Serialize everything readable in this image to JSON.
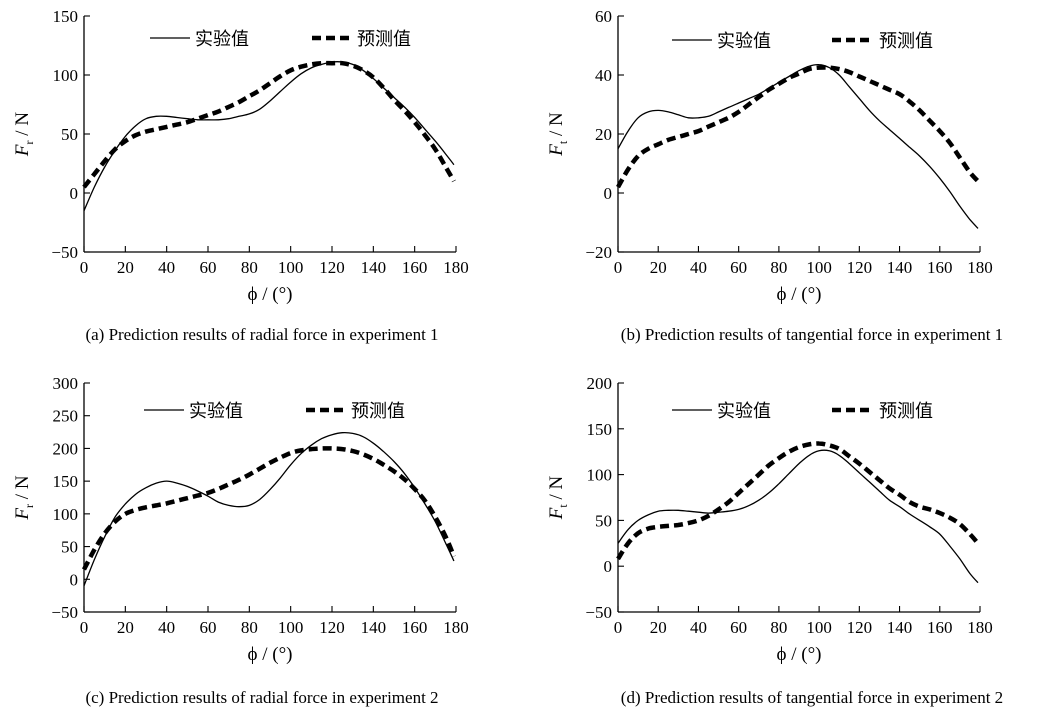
{
  "chart_data": [
    {
      "type": "line",
      "caption": "(a) Prediction results of radial force in experiment 1",
      "xlabel": "ϕ / (°)",
      "ylabel_main": "F",
      "ylabel_sub": "r",
      "ylabel_unit": " / N",
      "xlim": [
        0,
        180
      ],
      "ylim": [
        -50,
        150
      ],
      "xticks": [
        0,
        20,
        40,
        60,
        80,
        100,
        120,
        140,
        160,
        180
      ],
      "yticks": [
        -50,
        0,
        50,
        100,
        150
      ],
      "legend": "top",
      "series": [
        {
          "name": "实验值",
          "style": "solid",
          "x": [
            0,
            5,
            10,
            15,
            20,
            25,
            30,
            35,
            40,
            45,
            50,
            55,
            60,
            65,
            70,
            75,
            80,
            85,
            90,
            95,
            100,
            105,
            110,
            115,
            120,
            125,
            130,
            135,
            140,
            145,
            150,
            155,
            160,
            165,
            170,
            175,
            179
          ],
          "y": [
            -15,
            5,
            22,
            36,
            48,
            57,
            63,
            65,
            65,
            64,
            63,
            62,
            62,
            62,
            63,
            65,
            67,
            71,
            78,
            86,
            94,
            101,
            106,
            109,
            111,
            111,
            109,
            104,
            97,
            89,
            81,
            73,
            64,
            54,
            44,
            33,
            24
          ]
        },
        {
          "name": "预测值",
          "style": "dashed",
          "x": [
            0,
            5,
            10,
            15,
            20,
            25,
            30,
            35,
            40,
            45,
            50,
            55,
            60,
            65,
            70,
            75,
            80,
            85,
            90,
            95,
            100,
            105,
            110,
            115,
            120,
            125,
            130,
            135,
            140,
            145,
            150,
            155,
            160,
            165,
            170,
            175,
            179
          ],
          "y": [
            5,
            16,
            27,
            37,
            44,
            49,
            52,
            54,
            56,
            58,
            60,
            63,
            66,
            69,
            73,
            77,
            82,
            87,
            93,
            99,
            104,
            107,
            109,
            110,
            110,
            110,
            108,
            104,
            98,
            89,
            79,
            70,
            60,
            49,
            37,
            22,
            10
          ]
        }
      ]
    },
    {
      "type": "line",
      "caption": "(b) Prediction results of tangential force in experiment 1",
      "xlabel": "ϕ / (°)",
      "ylabel_main": "F",
      "ylabel_sub": "t",
      "ylabel_unit": " / N",
      "xlim": [
        0,
        180
      ],
      "ylim": [
        -20,
        60
      ],
      "xticks": [
        0,
        20,
        40,
        60,
        80,
        100,
        120,
        140,
        160,
        180
      ],
      "yticks": [
        -20,
        0,
        20,
        40,
        60
      ],
      "legend": "top",
      "series": [
        {
          "name": "实验值",
          "style": "solid",
          "x": [
            0,
            5,
            10,
            15,
            20,
            25,
            30,
            35,
            40,
            45,
            50,
            55,
            60,
            65,
            70,
            75,
            80,
            85,
            90,
            95,
            100,
            105,
            110,
            115,
            120,
            125,
            130,
            135,
            140,
            145,
            150,
            155,
            160,
            165,
            170,
            175,
            179
          ],
          "y": [
            15,
            21,
            25.5,
            27.5,
            28,
            27.5,
            26.5,
            25.5,
            25.5,
            26,
            27.5,
            29,
            30.5,
            32,
            33.5,
            35.5,
            37.5,
            39.5,
            41.5,
            43,
            43.5,
            42.5,
            40,
            36,
            32,
            28,
            24.5,
            21.5,
            18.5,
            15.5,
            12.5,
            9,
            5,
            0.5,
            -4.5,
            -9,
            -12
          ]
        },
        {
          "name": "预测值",
          "style": "dashed",
          "x": [
            0,
            5,
            10,
            15,
            20,
            25,
            30,
            35,
            40,
            45,
            50,
            55,
            60,
            65,
            70,
            75,
            80,
            85,
            90,
            95,
            100,
            105,
            110,
            115,
            120,
            125,
            130,
            135,
            140,
            145,
            150,
            155,
            160,
            165,
            170,
            175,
            179
          ],
          "y": [
            2,
            8,
            12.5,
            15,
            16.5,
            18,
            19,
            20,
            21,
            22.5,
            24,
            25.5,
            27.5,
            30,
            32.5,
            35,
            37,
            39,
            40.5,
            42,
            42.5,
            42.5,
            42,
            41,
            39.5,
            38,
            36.5,
            35,
            33.5,
            31,
            28,
            24.5,
            21,
            17,
            12,
            7,
            4
          ]
        }
      ]
    },
    {
      "type": "line",
      "caption": "(c) Prediction results of radial force in experiment 2",
      "xlabel": "ϕ / (°)",
      "ylabel_main": "F",
      "ylabel_sub": "r",
      "ylabel_unit": " / N",
      "xlim": [
        0,
        180
      ],
      "ylim": [
        -50,
        300
      ],
      "xticks": [
        0,
        20,
        40,
        60,
        80,
        100,
        120,
        140,
        160,
        180
      ],
      "yticks": [
        -50,
        0,
        50,
        100,
        150,
        200,
        250,
        300
      ],
      "legend": "top",
      "series": [
        {
          "name": "实验值",
          "style": "solid",
          "x": [
            0,
            5,
            10,
            15,
            20,
            25,
            30,
            35,
            40,
            45,
            50,
            55,
            60,
            65,
            70,
            75,
            80,
            85,
            90,
            95,
            100,
            105,
            110,
            115,
            120,
            125,
            130,
            135,
            140,
            145,
            150,
            155,
            160,
            165,
            170,
            175,
            179
          ],
          "y": [
            -10,
            30,
            65,
            95,
            115,
            130,
            140,
            147,
            150,
            147,
            142,
            135,
            127,
            118,
            113,
            111,
            113,
            122,
            137,
            155,
            175,
            192,
            205,
            215,
            221,
            224,
            223,
            218,
            208,
            195,
            180,
            162,
            140,
            115,
            88,
            55,
            28
          ]
        },
        {
          "name": "预测值",
          "style": "dashed",
          "x": [
            0,
            5,
            10,
            15,
            20,
            25,
            30,
            35,
            40,
            45,
            50,
            55,
            60,
            65,
            70,
            75,
            80,
            85,
            90,
            95,
            100,
            105,
            110,
            115,
            120,
            125,
            130,
            135,
            140,
            145,
            150,
            155,
            160,
            165,
            170,
            175,
            179
          ],
          "y": [
            15,
            45,
            70,
            88,
            100,
            106,
            110,
            113,
            116,
            120,
            124,
            128,
            132,
            138,
            145,
            152,
            160,
            169,
            178,
            186,
            193,
            197,
            199,
            200,
            200,
            199,
            196,
            191,
            184,
            175,
            165,
            153,
            138,
            120,
            95,
            65,
            35
          ]
        }
      ]
    },
    {
      "type": "line",
      "caption": "(d) Prediction results of tangential force in experiment 2",
      "xlabel": "ϕ / (°)",
      "ylabel_main": "F",
      "ylabel_sub": "t",
      "ylabel_unit": " / N",
      "xlim": [
        0,
        180
      ],
      "ylim": [
        -50,
        200
      ],
      "xticks": [
        0,
        20,
        40,
        60,
        80,
        100,
        120,
        140,
        160,
        180
      ],
      "yticks": [
        -50,
        0,
        50,
        100,
        150,
        200
      ],
      "legend": "top",
      "series": [
        {
          "name": "实验值",
          "style": "solid",
          "x": [
            0,
            5,
            10,
            15,
            20,
            25,
            30,
            35,
            40,
            45,
            50,
            55,
            60,
            65,
            70,
            75,
            80,
            85,
            90,
            95,
            100,
            105,
            110,
            115,
            120,
            125,
            130,
            135,
            140,
            145,
            150,
            155,
            160,
            165,
            170,
            175,
            179
          ],
          "y": [
            25,
            40,
            50,
            56,
            60,
            61,
            61,
            60,
            59,
            58,
            59,
            60,
            62,
            66,
            72,
            80,
            90,
            101,
            112,
            121,
            126,
            126,
            121,
            112,
            102,
            92,
            82,
            72,
            65,
            57,
            50,
            43,
            35,
            22,
            8,
            -8,
            -18
          ]
        },
        {
          "name": "预测值",
          "style": "dashed",
          "x": [
            0,
            5,
            10,
            15,
            20,
            25,
            30,
            35,
            40,
            45,
            50,
            55,
            60,
            65,
            70,
            75,
            80,
            85,
            90,
            95,
            100,
            105,
            110,
            115,
            120,
            125,
            130,
            135,
            140,
            145,
            150,
            155,
            160,
            165,
            170,
            175,
            179
          ],
          "y": [
            8,
            25,
            36,
            41,
            43,
            44,
            45,
            47,
            50,
            55,
            62,
            70,
            80,
            90,
            100,
            110,
            118,
            125,
            130,
            133,
            134,
            132,
            128,
            120,
            112,
            103,
            94,
            85,
            78,
            70,
            65,
            62,
            58,
            53,
            46,
            35,
            25
          ]
        }
      ]
    }
  ]
}
